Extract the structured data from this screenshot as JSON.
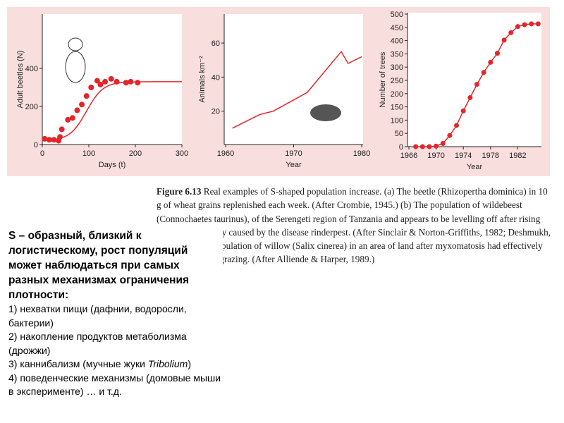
{
  "chart_data": [
    {
      "type": "scatter",
      "panel": "a",
      "xlabel": "Days (t)",
      "ylabel": "Adult beetles (N)",
      "xlim": [
        0,
        300
      ],
      "ylim": [
        0,
        600
      ],
      "xticks": [
        "0",
        "100",
        "200",
        "300"
      ],
      "yticks": [
        "0",
        "200",
        "400"
      ],
      "points": [
        [
          5,
          30
        ],
        [
          15,
          25
        ],
        [
          25,
          25
        ],
        [
          35,
          20
        ],
        [
          38,
          40
        ],
        [
          42,
          80
        ],
        [
          55,
          130
        ],
        [
          65,
          140
        ],
        [
          75,
          180
        ],
        [
          85,
          210
        ],
        [
          95,
          255
        ],
        [
          105,
          300
        ],
        [
          118,
          335
        ],
        [
          125,
          315
        ],
        [
          135,
          330
        ],
        [
          148,
          345
        ],
        [
          160,
          330
        ],
        [
          180,
          325
        ],
        [
          190,
          330
        ],
        [
          205,
          325
        ]
      ],
      "fit_note": "logistic curve"
    },
    {
      "type": "line",
      "panel": "b",
      "xlabel": "Year",
      "ylabel": "Animals km⁻²",
      "xlim": [
        1960,
        1980
      ],
      "ylim": [
        0,
        65
      ],
      "xticks": [
        "1960",
        "1970",
        "1980"
      ],
      "yticks": [
        "20",
        "40",
        "60"
      ],
      "x": [
        1961,
        1965,
        1967,
        1972,
        1977,
        1978,
        1980
      ],
      "y": [
        10,
        18,
        20,
        31,
        55,
        48,
        52
      ]
    },
    {
      "type": "scatter",
      "panel": "c",
      "xlabel": "Year",
      "ylabel": "Number of trees",
      "xlim": [
        1966,
        1986
      ],
      "ylim": [
        0,
        500
      ],
      "xticks": [
        "1966",
        "1970",
        "1974",
        "1978",
        "1982"
      ],
      "yticks": [
        "0",
        "50",
        "100",
        "150",
        "200",
        "250",
        "300",
        "350",
        "400",
        "450",
        "500"
      ],
      "x": [
        1967,
        1968,
        1969,
        1970,
        1971,
        1972,
        1973,
        1974,
        1975,
        1976,
        1977,
        1978,
        1979,
        1980,
        1981,
        1982,
        1983,
        1984,
        1985
      ],
      "y": [
        0,
        0,
        0,
        2,
        12,
        42,
        80,
        135,
        185,
        235,
        280,
        318,
        352,
        402,
        430,
        453,
        460,
        463,
        463
      ]
    }
  ],
  "caption": {
    "fig": "Figure 6.13",
    "text": " Real examples of S-shaped population increase. (a) The beetle (Rhizopertha dominica) in 10 g of wheat grains replenished each week. (After Crombie, 1945.) (b) The population of wildebeest (Connochaetes taurinus), of the Serengeti region of Tanzania and appears to be levelling off after rising from a low density caused by the disease rinderpest. (After Sinclair & Norton-Griffiths, 1982; Deshmukh, 1986.) (c) The population of willow (Salix cinerea) in an area of land after myxomatosis had effectively prevented rabbit grazing. (After Alliende & Harper, 1989.)"
  },
  "text": {
    "heading": "S – образный, близкий к логистическому, рост популяций может наблюдаться при самых разных механизмах ограничения плотности:",
    "items": [
      "1) нехватки пищи (дафнии, водоросли, бактерии)",
      "2) накопление продуктов метаболизма (дрожжи)",
      "3) каннибализм (мучные жуки ",
      "4) поведенческие механизмы (домовые мыши в эксперименте) … и  т.д."
    ],
    "item3_italic": "Tribolium",
    "item3_end": ")"
  }
}
